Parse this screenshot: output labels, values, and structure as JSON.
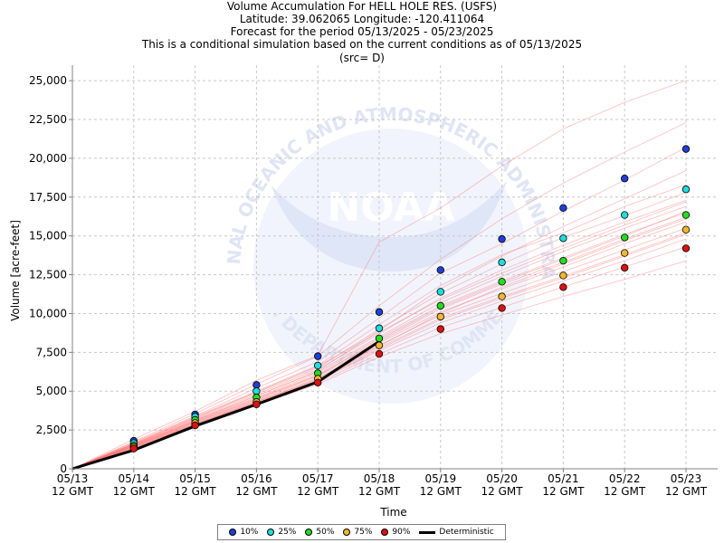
{
  "header": {
    "title": "Volume Accumulation For HELL HOLE RES. (USFS)",
    "location": "Latitude: 39.062065 Longitude: -120.411064",
    "period": "Forecast for the period 05/13/2025 - 05/23/2025",
    "note": "This is a conditional simulation based on the current conditions as of 05/13/2025",
    "source": "(src= D)"
  },
  "watermark": {
    "logo_text": "NOAA",
    "ring_top": "NATIONAL OCEANIC AND ATMOSPHERIC ADMINISTRATION",
    "ring_bottom": "U.S. DEPARTMENT OF COMMERCE"
  },
  "chart_data": {
    "type": "scatter",
    "xlabel": "Time",
    "ylabel": "Volume [acre-feet]",
    "categories": [
      "05/13\n12 GMT",
      "05/14\n12 GMT",
      "05/15\n12 GMT",
      "05/16\n12 GMT",
      "05/17\n12 GMT",
      "05/18\n12 GMT",
      "05/19\n12 GMT",
      "05/20\n12 GMT",
      "05/21\n12 GMT",
      "05/22\n12 GMT",
      "05/23\n12 GMT"
    ],
    "ylim": [
      0,
      26000
    ],
    "yticks": [
      0,
      2500,
      5000,
      7500,
      10000,
      12500,
      15000,
      17500,
      20000,
      22500,
      25000
    ],
    "grid": true,
    "legend_position": "bottom",
    "series": [
      {
        "name": "10%",
        "color": "#1f3fd6",
        "values": [
          null,
          1800,
          3500,
          5400,
          7250,
          10100,
          12800,
          14800,
          16800,
          18700,
          20600
        ]
      },
      {
        "name": "25%",
        "color": "#22dcdc",
        "values": [
          null,
          1650,
          3350,
          5000,
          6650,
          9050,
          11400,
          13300,
          14850,
          16350,
          18000
        ]
      },
      {
        "name": "50%",
        "color": "#22dd22",
        "values": [
          null,
          1500,
          3150,
          4600,
          6150,
          8400,
          10500,
          12050,
          13400,
          14900,
          16350
        ]
      },
      {
        "name": "75%",
        "color": "#f2b632",
        "values": [
          null,
          1400,
          2950,
          4300,
          5800,
          7950,
          9800,
          11100,
          12450,
          13900,
          15400
        ]
      },
      {
        "name": "90%",
        "color": "#dd1111",
        "values": [
          null,
          1300,
          2800,
          4150,
          5550,
          7400,
          9000,
          10350,
          11700,
          12950,
          14200
        ]
      },
      {
        "name": "Deterministic",
        "color": "#000000",
        "values": [
          0,
          1200,
          2750,
          4150,
          5600,
          8200,
          null,
          null,
          null,
          null,
          null
        ]
      }
    ],
    "ensemble_traces": [
      [
        0,
        1900,
        3700,
        5700,
        7300,
        14600,
        16800,
        19500,
        21900,
        23600,
        25000
      ],
      [
        0,
        1750,
        3550,
        5450,
        7250,
        10500,
        13500,
        16100,
        18400,
        20400,
        22300
      ],
      [
        0,
        1700,
        3400,
        5200,
        6900,
        9700,
        12600,
        14500,
        16600,
        18600,
        20700
      ],
      [
        0,
        1650,
        3350,
        5000,
        6650,
        9300,
        11800,
        13800,
        15200,
        16900,
        18300
      ],
      [
        0,
        1600,
        3250,
        4900,
        6500,
        9000,
        11300,
        13200,
        14900,
        16300,
        17800
      ],
      [
        0,
        1600,
        3200,
        4800,
        6400,
        8700,
        11000,
        12800,
        14400,
        15900,
        17300
      ],
      [
        0,
        1550,
        3150,
        4700,
        6250,
        8500,
        10700,
        12400,
        14000,
        15500,
        16900
      ],
      [
        0,
        1550,
        3100,
        4600,
        6150,
        8400,
        10500,
        12100,
        13600,
        15100,
        16500
      ],
      [
        0,
        1500,
        3050,
        4550,
        6050,
        8200,
        10300,
        11900,
        13300,
        14800,
        16200
      ],
      [
        0,
        1500,
        3000,
        4450,
        5950,
        8100,
        10100,
        11600,
        13000,
        14500,
        15900
      ],
      [
        0,
        1450,
        2950,
        4400,
        5850,
        7950,
        9900,
        11300,
        12700,
        14100,
        15500
      ],
      [
        0,
        1450,
        2900,
        4350,
        5750,
        7800,
        9700,
        11100,
        12400,
        13800,
        15200
      ],
      [
        0,
        1400,
        2850,
        4250,
        5650,
        7600,
        9400,
        10800,
        12100,
        13400,
        14800
      ],
      [
        0,
        1350,
        2800,
        4150,
        5550,
        7400,
        9100,
        10400,
        11700,
        13000,
        14300
      ],
      [
        0,
        1300,
        2750,
        4100,
        5450,
        7200,
        8700,
        9900,
        11100,
        12200,
        13400
      ],
      [
        0,
        1350,
        2850,
        4300,
        5700,
        7700,
        9600,
        11000,
        12300,
        13700,
        15100
      ],
      [
        0,
        1500,
        3100,
        4700,
        6300,
        8900,
        11600,
        13700,
        15600,
        17400,
        19200
      ],
      [
        0,
        1400,
        2900,
        4300,
        5800,
        7900,
        10000,
        11700,
        13200,
        14700,
        16100
      ],
      [
        0,
        1600,
        3300,
        4950,
        6600,
        8800,
        10900,
        12600,
        14200,
        15700,
        17200
      ],
      [
        0,
        1450,
        3000,
        4500,
        6000,
        8300,
        10400,
        12000,
        13500,
        15000,
        16600
      ]
    ]
  }
}
